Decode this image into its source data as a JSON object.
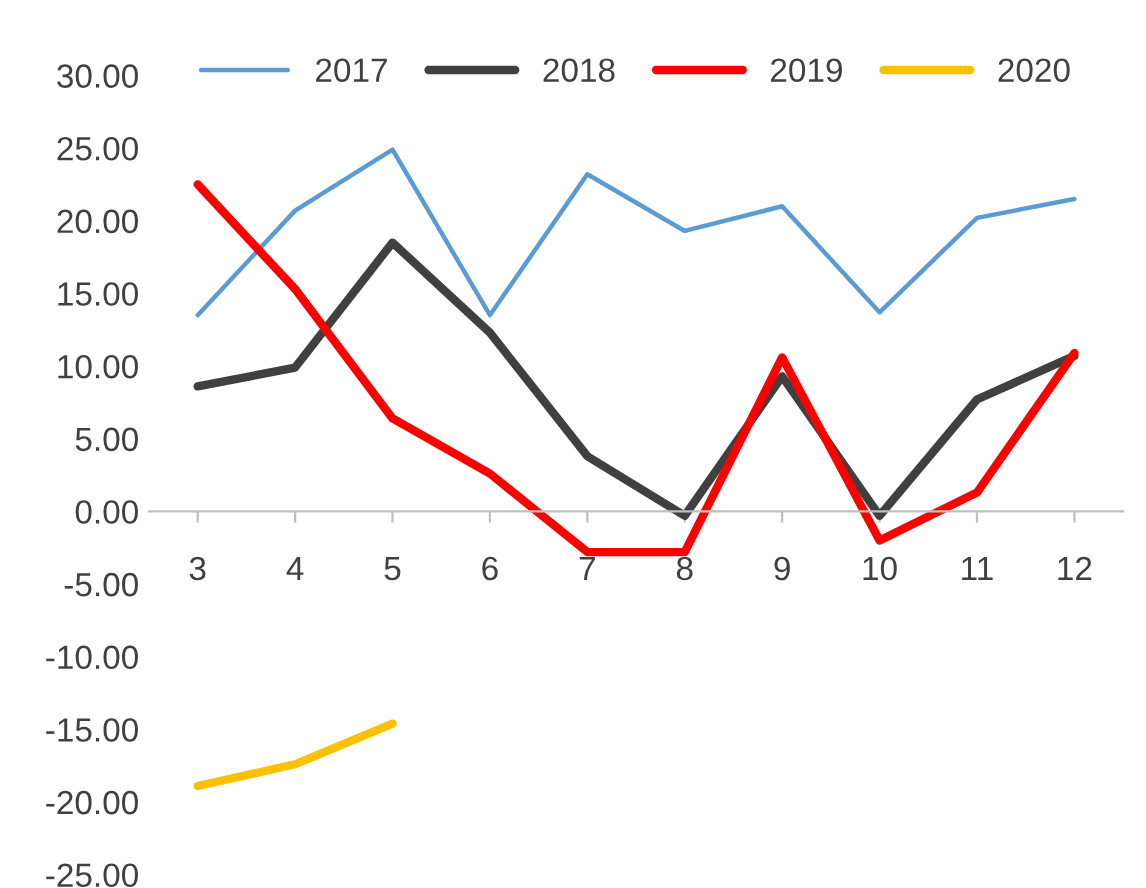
{
  "chart_data": {
    "type": "line",
    "categories": [
      "3",
      "4",
      "5",
      "6",
      "7",
      "8",
      "9",
      "10",
      "11",
      "12"
    ],
    "series": [
      {
        "name": "2017",
        "color": "#5b9bd5",
        "values": [
          13.5,
          20.7,
          24.9,
          13.5,
          23.2,
          19.3,
          21.0,
          13.7,
          20.2,
          21.5
        ]
      },
      {
        "name": "2018",
        "color": "#404040",
        "values": [
          8.6,
          9.9,
          18.5,
          12.3,
          3.8,
          -0.3,
          9.3,
          -0.3,
          7.7,
          10.7
        ]
      },
      {
        "name": "2019",
        "color": "#ff0000",
        "values": [
          22.5,
          15.3,
          6.4,
          2.6,
          -2.8,
          -2.8,
          10.6,
          -2.0,
          1.3,
          10.9
        ]
      },
      {
        "name": "2020",
        "color": "#ffc000",
        "values": [
          -18.9,
          -17.4,
          -14.6,
          null,
          null,
          null,
          null,
          null,
          null,
          null
        ]
      }
    ],
    "ylim": [
      -25,
      30
    ],
    "yticks": [
      {
        "value": 30,
        "label": "30.00"
      },
      {
        "value": 25,
        "label": "25.00"
      },
      {
        "value": 20,
        "label": "20.00"
      },
      {
        "value": 15,
        "label": "15.00"
      },
      {
        "value": 10,
        "label": "10.00"
      },
      {
        "value": 5,
        "label": "5.00"
      },
      {
        "value": 0,
        "label": "0.00"
      },
      {
        "value": -5,
        "label": "-5.00"
      },
      {
        "value": -10,
        "label": "-10.00"
      },
      {
        "value": -15,
        "label": "-15.00"
      },
      {
        "value": -20,
        "label": "-20.00"
      },
      {
        "value": -25,
        "label": "-25.00"
      }
    ],
    "grid": false,
    "legend": "top",
    "marker": "none",
    "line_style": "solid"
  }
}
